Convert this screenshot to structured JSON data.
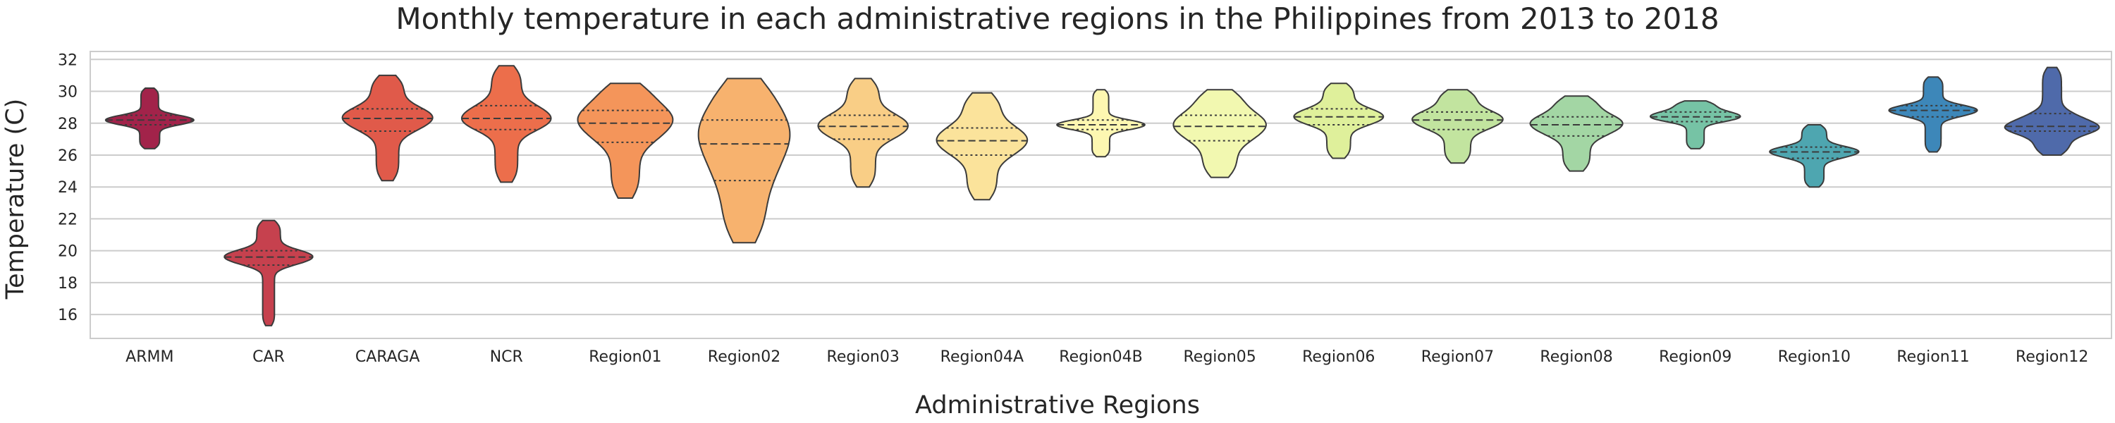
{
  "chart_data": {
    "type": "violin",
    "title": "Monthly temperature in each administrative regions in the Philippines from 2013 to 2018",
    "xlabel": "Administrative Regions",
    "ylabel": "Temperature (C)",
    "ylim": [
      14.5,
      32.5
    ],
    "yticks": [
      16,
      18,
      20,
      22,
      24,
      26,
      28,
      30,
      32
    ],
    "grid": "horizontal",
    "inner": "quartile",
    "categories": [
      "ARMM",
      "CAR",
      "CARAGA",
      "NCR",
      "Region01",
      "Region02",
      "Region03",
      "Region04A",
      "Region04B",
      "Region05",
      "Region06",
      "Region07",
      "Region08",
      "Region09",
      "Region10",
      "Region11",
      "Region12"
    ],
    "series": [
      {
        "category": "ARMM",
        "min": 26.4,
        "q1": 27.9,
        "median": 28.2,
        "q3": 28.5,
        "max": 30.2,
        "color": "#a2234a"
      },
      {
        "category": "CAR",
        "min": 15.3,
        "q1": 19.1,
        "median": 19.6,
        "q3": 20.0,
        "max": 21.9,
        "color": "#c6414e"
      },
      {
        "category": "CARAGA",
        "min": 24.4,
        "q1": 27.5,
        "median": 28.3,
        "q3": 28.9,
        "max": 31.0,
        "color": "#e05a4a"
      },
      {
        "category": "NCR",
        "min": 24.3,
        "q1": 27.6,
        "median": 28.3,
        "q3": 29.1,
        "max": 31.6,
        "color": "#ec6e4b"
      },
      {
        "category": "Region01",
        "min": 23.3,
        "q1": 26.8,
        "median": 28.0,
        "q3": 28.8,
        "max": 30.5,
        "color": "#f4955a"
      },
      {
        "category": "Region02",
        "min": 20.5,
        "q1": 24.4,
        "median": 26.7,
        "q3": 28.2,
        "max": 30.8,
        "color": "#f7b26e"
      },
      {
        "category": "Region03",
        "min": 24.0,
        "q1": 27.0,
        "median": 27.8,
        "q3": 28.5,
        "max": 30.8,
        "color": "#f9ce86"
      },
      {
        "category": "Region04A",
        "min": 23.2,
        "q1": 26.0,
        "median": 26.9,
        "q3": 27.7,
        "max": 29.9,
        "color": "#fbe39b"
      },
      {
        "category": "Region04B",
        "min": 25.9,
        "q1": 27.6,
        "median": 27.9,
        "q3": 28.2,
        "max": 30.1,
        "color": "#fdf7b1"
      },
      {
        "category": "Region05",
        "min": 24.6,
        "q1": 26.9,
        "median": 27.8,
        "q3": 28.5,
        "max": 30.1,
        "color": "#f2f8b0"
      },
      {
        "category": "Region06",
        "min": 25.8,
        "q1": 27.9,
        "median": 28.4,
        "q3": 28.9,
        "max": 30.5,
        "color": "#dff09b"
      },
      {
        "category": "Region07",
        "min": 25.5,
        "q1": 27.6,
        "median": 28.2,
        "q3": 28.7,
        "max": 30.1,
        "color": "#c2e49f"
      },
      {
        "category": "Region08",
        "min": 25.0,
        "q1": 27.2,
        "median": 27.9,
        "q3": 28.4,
        "max": 29.7,
        "color": "#a3d6a4"
      },
      {
        "category": "Region09",
        "min": 26.4,
        "q1": 28.1,
        "median": 28.4,
        "q3": 28.7,
        "max": 29.4,
        "color": "#76c3a5"
      },
      {
        "category": "Region10",
        "min": 24.0,
        "q1": 25.8,
        "median": 26.2,
        "q3": 26.5,
        "max": 27.9,
        "color": "#4ea6b0"
      },
      {
        "category": "Region11",
        "min": 26.2,
        "q1": 28.4,
        "median": 28.8,
        "q3": 29.1,
        "max": 30.9,
        "color": "#3d87b9"
      },
      {
        "category": "Region12",
        "min": 26.0,
        "q1": 27.5,
        "median": 27.8,
        "q3": 28.6,
        "max": 31.5,
        "color": "#4f6aaa"
      }
    ]
  }
}
